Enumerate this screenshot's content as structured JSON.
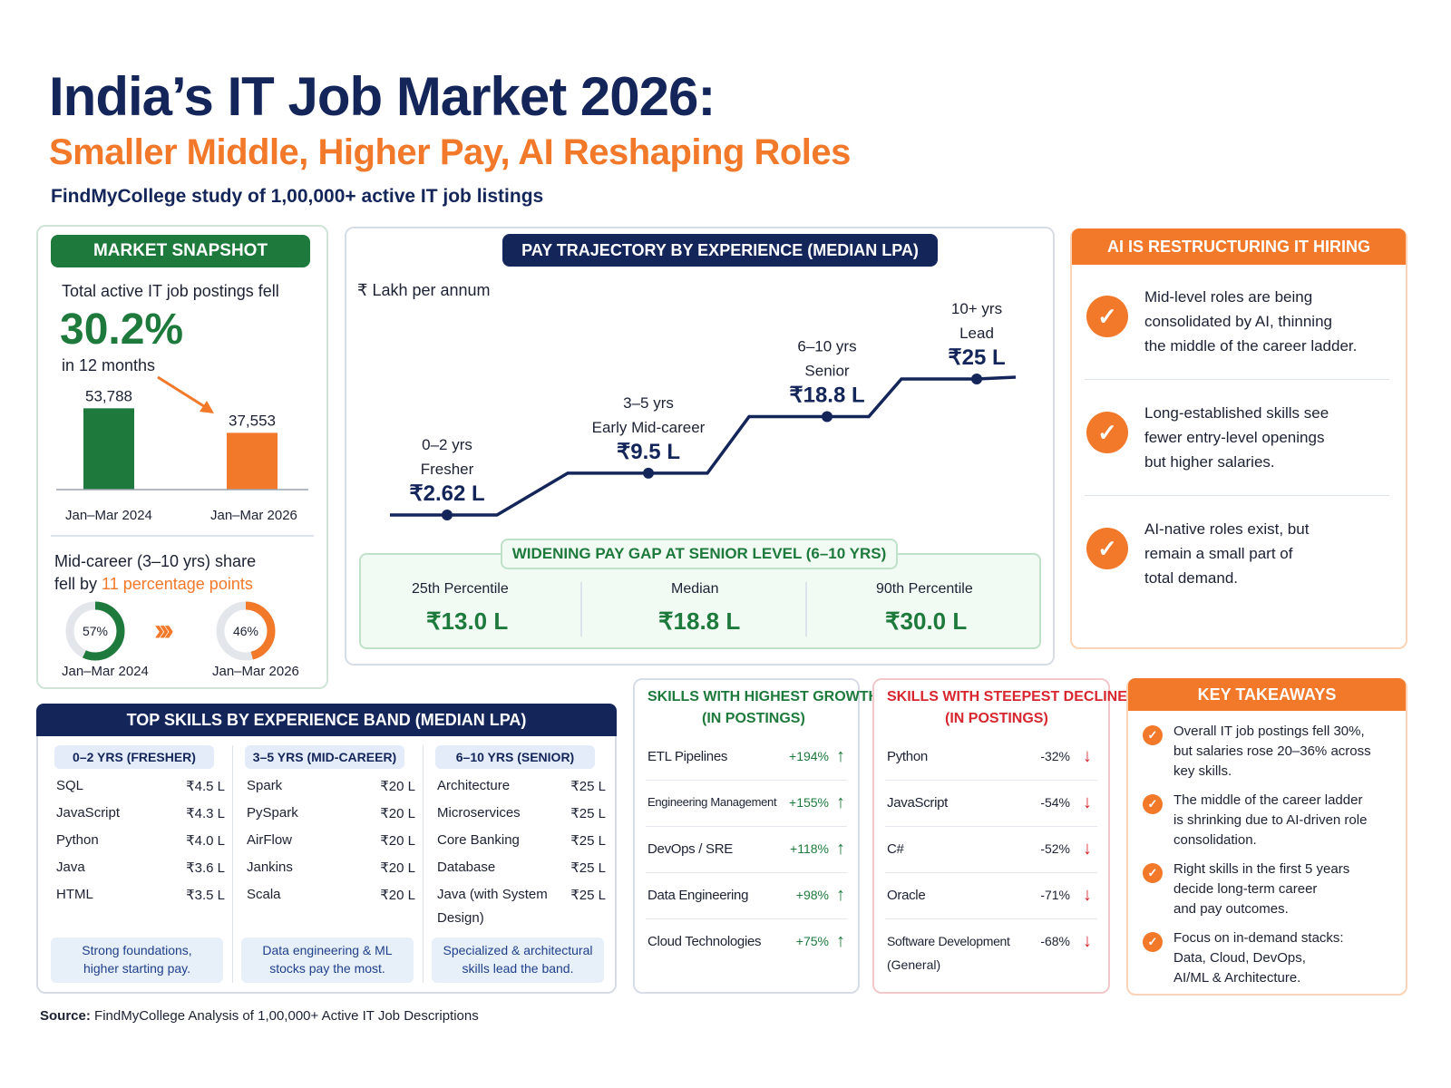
{
  "header": {
    "title": "India’s IT Job Market 2026:",
    "subtitle": "Smaller Middle, Higher Pay, AI Reshaping Roles",
    "study": "FindMyCollege study of 1,00,000+ active IT job listings"
  },
  "snapshot": {
    "heading": "MARKET SNAPSHOT",
    "intro": "Total active IT job postings fell",
    "big_percent": "30.2%",
    "period": "in 12 months",
    "bars": [
      {
        "label": "Jan–Mar 2024",
        "value": 53788,
        "value_label": "53,788",
        "color": "#1e7a3c"
      },
      {
        "label": "Jan–Mar 2026",
        "value": 37553,
        "value_label": "37,553",
        "color": "#f2782a"
      }
    ],
    "mid_line1": "Mid-career (3–10 yrs) share",
    "mid_line2_prefix": "fell by",
    "mid_line2_highlight": "11 percentage points",
    "donuts": [
      {
        "label": "Jan–Mar 2024",
        "percent": 57,
        "value_label": "57%",
        "color": "#1e7a3c"
      },
      {
        "label": "Jan–Mar 2026",
        "percent": 46,
        "value_label": "46%",
        "color": "#f2782a"
      }
    ],
    "chevrons": "›››"
  },
  "pay": {
    "heading": "PAY TRAJECTORY BY EXPERIENCE (MEDIAN LPA)",
    "unit": "₹ Lakh per annum",
    "gap_heading": "WIDENING PAY GAP AT SENIOR LEVEL (6–10 YRS)",
    "gap": [
      {
        "label": "25th Percentile",
        "value": "₹13.0 L"
      },
      {
        "label": "Median",
        "value": "₹18.8 L"
      },
      {
        "label": "90th Percentile",
        "value": "₹30.0 L"
      }
    ]
  },
  "ai": {
    "heading": "AI IS RESTRUCTURING IT HIRING",
    "points": [
      [
        "Mid-level roles are being",
        "consolidated by AI, thinning",
        "the middle of the career ladder."
      ],
      [
        "Long-established skills see",
        "fewer entry-level openings",
        "but higher salaries."
      ],
      [
        "AI-native roles exist, but",
        "remain a small part of",
        "total demand."
      ]
    ]
  },
  "skills": {
    "heading": "TOP SKILLS BY EXPERIENCE BAND (MEDIAN LPA)",
    "bands": [
      {
        "title": "0–2 YRS (FRESHER)",
        "items": [
          [
            "SQL",
            "₹4.5 L"
          ],
          [
            "JavaScript",
            "₹4.3 L"
          ],
          [
            "Python",
            "₹4.0 L"
          ],
          [
            "Java",
            "₹3.6 L"
          ],
          [
            "HTML",
            "₹3.5 L"
          ]
        ],
        "note": [
          "Strong foundations,",
          "higher starting pay."
        ]
      },
      {
        "title": "3–5 YRS (MID-CAREER)",
        "items": [
          [
            "Spark",
            "₹20 L"
          ],
          [
            "PySpark",
            "₹20 L"
          ],
          [
            "AirFlow",
            "₹20 L"
          ],
          [
            "Jankins",
            "₹20 L"
          ],
          [
            "Scala",
            "₹20 L"
          ]
        ],
        "note": [
          "Data engineering & ML",
          "stocks pay the most."
        ]
      },
      {
        "title": "6–10 YRS (SENIOR)",
        "items": [
          [
            "Architecture",
            "₹25 L"
          ],
          [
            "Microservices",
            "₹25 L"
          ],
          [
            "Core Banking",
            "₹25 L"
          ],
          [
            "Database",
            "₹25 L"
          ],
          [
            "Java (with System",
            "₹25 L"
          ]
        ],
        "extra": "Design)",
        "note": [
          "Specialized & architectural",
          "skills lead the band."
        ]
      }
    ]
  },
  "growth": {
    "heading1": "SKILLS WITH HIGHEST GROWTH",
    "heading2": "(IN POSTINGS)",
    "items": [
      [
        "ETL Pipelines",
        "+194%"
      ],
      [
        "Engineering Management",
        "+155%"
      ],
      [
        "DevOps / SRE",
        "+118%"
      ],
      [
        "Data Engineering",
        "+98%"
      ],
      [
        "Cloud Technologies",
        "+75%"
      ]
    ],
    "arrow": "🠅"
  },
  "decline": {
    "heading1": "SKILLS WITH STEEPEST DECLINE",
    "heading2": "(IN POSTINGS)",
    "items": [
      [
        "Python",
        "-32%"
      ],
      [
        "JavaScript",
        "-54%"
      ],
      [
        "C#",
        "-52%"
      ],
      [
        "Oracle",
        "-71%"
      ],
      [
        "Software Development",
        "-68%"
      ]
    ],
    "extra": "(General)"
  },
  "takeaways": {
    "heading": "KEY TAKEAWAYS",
    "points": [
      [
        "Overall IT job postings fell 30%,",
        "but salaries rose 20–36% across",
        "key skills."
      ],
      [
        "The middle of the career ladder",
        "is shrinking due to AI-driven role",
        "consolidation."
      ],
      [
        "Right skills in the first 5 years",
        "decide long-term career",
        "and pay outcomes."
      ],
      [
        "Focus on in-demand stacks:",
        "Data, Cloud, DevOps,",
        "AI/ML & Architecture."
      ]
    ]
  },
  "source": {
    "label": "Source:",
    "text": "FindMyCollege Analysis of 1,00,000+ Active IT Job Descriptions"
  },
  "chart_data": [
    {
      "type": "bar",
      "title": "",
      "categories": [
        "Jan–Mar 2024",
        "Jan–Mar 2026"
      ],
      "values": [
        53788,
        37553
      ],
      "ylim": [
        0,
        60000
      ]
    },
    {
      "type": "line",
      "title": "PAY TRAJECTORY BY EXPERIENCE (MEDIAN LPA)",
      "ylabel": "₹ Lakh per annum",
      "categories": [
        "0–2 yrs Fresher",
        "3–5 yrs Early Mid-career",
        "6–10 yrs Senior",
        "10+ yrs Lead"
      ],
      "points": [
        {
          "band": "0–2 yrs",
          "role": "Fresher",
          "value": 2.62,
          "label": "₹2.62 L"
        },
        {
          "band": "3–5 yrs",
          "role": "Early Mid-career",
          "value": 9.5,
          "label": "₹9.5 L"
        },
        {
          "band": "6–10 yrs",
          "role": "Senior",
          "value": 18.8,
          "label": "₹18.8 L"
        },
        {
          "band": "10+ yrs",
          "role": "Lead",
          "value": 25,
          "label": "₹25 L"
        }
      ]
    },
    {
      "type": "pie",
      "title": "Mid-career (3–10 yrs) share",
      "categories": [
        "Jan–Mar 2024",
        "Jan–Mar 2026"
      ],
      "values": [
        57,
        46
      ]
    }
  ],
  "colors": {
    "navy": "#14255a",
    "orange": "#f2782a",
    "green": "#1e7a3c",
    "red": "#d8262f"
  }
}
